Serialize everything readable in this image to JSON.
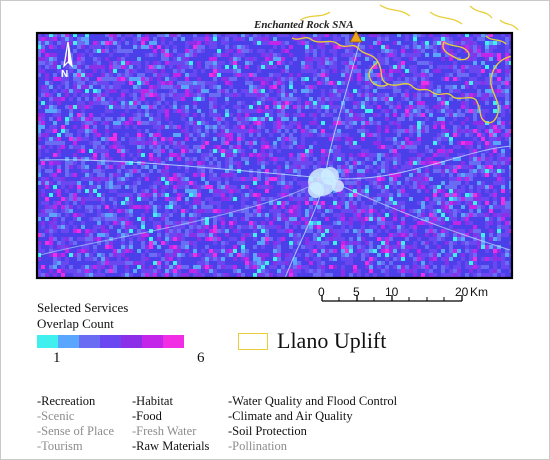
{
  "map": {
    "place_label": "Enchanted Rock SNA",
    "north_label": "N",
    "colors": {
      "background": "#4a3fe8",
      "boundary": "#000000",
      "uplift_outline": "#e8cf3a",
      "marker": "#f2a51a"
    }
  },
  "scale_bar": {
    "ticks": [
      "0",
      "5",
      "10",
      "20"
    ],
    "unit": "Km"
  },
  "legend": {
    "title_line1": "Selected Services",
    "title_line2": "Overlap Count",
    "ramp_min": "1",
    "ramp_max": "6",
    "ramp_colors": [
      "#3ff0ef",
      "#5aa6ff",
      "#6a6cf4",
      "#6a47f0",
      "#8b2fe8",
      "#c326e8",
      "#f22ee5"
    ],
    "uplift_label": "Llano Uplift"
  },
  "services": {
    "col1": [
      {
        "label": "-Recreation",
        "selected": true
      },
      {
        "label": "-Scenic",
        "selected": false
      },
      {
        "label": "-Sense of Place",
        "selected": false
      },
      {
        "label": "-Tourism",
        "selected": false
      }
    ],
    "col2": [
      {
        "label": "-Habitat",
        "selected": true
      },
      {
        "label": "-Food",
        "selected": true
      },
      {
        "label": "-Fresh Water",
        "selected": false
      },
      {
        "label": "-Raw Materials",
        "selected": true
      }
    ],
    "col3": [
      {
        "label": "-Water Quality and Flood Control",
        "selected": true
      },
      {
        "label": "-Climate and Air Quality",
        "selected": true
      },
      {
        "label": "-Soil Protection",
        "selected": true
      },
      {
        "label": "-Pollination",
        "selected": false
      }
    ]
  }
}
